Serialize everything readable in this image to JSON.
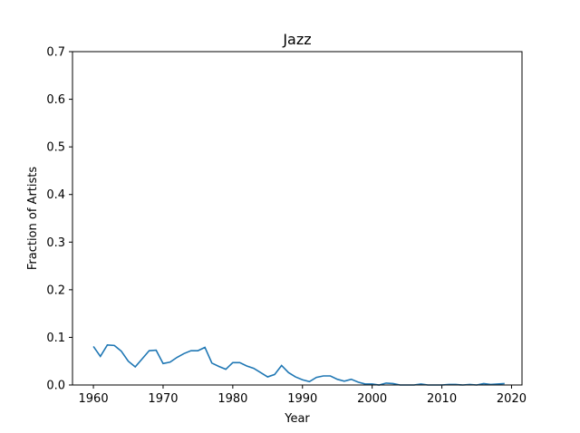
{
  "chart_data": {
    "type": "line",
    "title": "Jazz",
    "xlabel": "Year",
    "ylabel": "Fraction of Artists",
    "xlim": [
      1957,
      2021.5
    ],
    "ylim": [
      0,
      0.7
    ],
    "xticks": [
      1960,
      1970,
      1980,
      1990,
      2000,
      2010,
      2020
    ],
    "yticks": [
      0.0,
      0.1,
      0.2,
      0.3,
      0.4,
      0.5,
      0.6,
      0.7
    ],
    "xtick_labels": [
      "1960",
      "1970",
      "1980",
      "1990",
      "2000",
      "2010",
      "2020"
    ],
    "ytick_labels": [
      "0.0",
      "0.1",
      "0.2",
      "0.3",
      "0.4",
      "0.5",
      "0.6",
      "0.7"
    ],
    "grid": false,
    "line_color": "#1f77b4",
    "series": [
      {
        "x": [
          1960,
          1961,
          1962,
          1963,
          1964,
          1965,
          1966,
          1967,
          1968,
          1969,
          1970,
          1971,
          1972,
          1973,
          1974,
          1975,
          1976,
          1977,
          1978,
          1979,
          1980,
          1981,
          1982,
          1983,
          1984,
          1985,
          1986,
          1987,
          1988,
          1989,
          1990,
          1991,
          1992,
          1993,
          1994,
          1995,
          1996,
          1997,
          1998,
          1999,
          2000,
          2001,
          2002,
          2003,
          2004,
          2005,
          2006,
          2007,
          2008,
          2009,
          2010,
          2011,
          2012,
          2013,
          2014,
          2015,
          2016,
          2017,
          2018,
          2019
        ],
        "values": [
          0.081,
          0.06,
          0.084,
          0.083,
          0.071,
          0.05,
          0.038,
          0.055,
          0.072,
          0.073,
          0.045,
          0.048,
          0.058,
          0.066,
          0.072,
          0.072,
          0.079,
          0.046,
          0.039,
          0.033,
          0.047,
          0.047,
          0.04,
          0.035,
          0.026,
          0.017,
          0.022,
          0.041,
          0.026,
          0.017,
          0.011,
          0.007,
          0.016,
          0.019,
          0.019,
          0.012,
          0.008,
          0.012,
          0.006,
          0.002,
          0.002,
          0.0,
          0.004,
          0.003,
          0.0,
          0.0,
          0.0,
          0.002,
          0.0,
          0.0,
          0.0,
          0.001,
          0.001,
          0.0,
          0.001,
          0.0,
          0.003,
          0.001,
          0.002,
          0.003
        ]
      }
    ]
  }
}
